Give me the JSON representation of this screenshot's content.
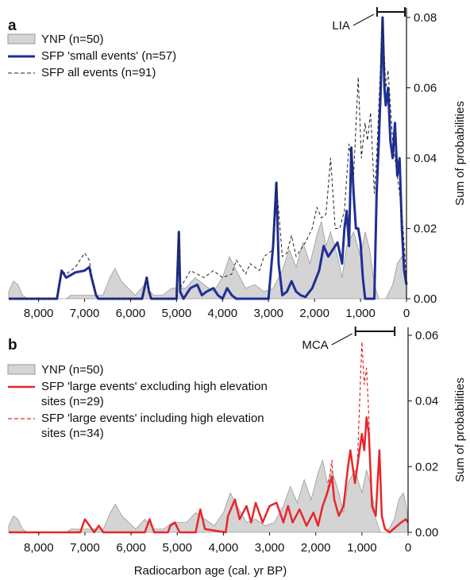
{
  "chart_data": [
    {
      "type": "line",
      "panel": "a",
      "ylabel": "Sum of probabilities",
      "xlim": [
        8650,
        0
      ],
      "ylim": [
        0,
        0.08
      ],
      "xticks": [
        {
          "value": 8000,
          "label": "8,000"
        },
        {
          "value": 7000,
          "label": "7,000"
        },
        {
          "value": 6000,
          "label": "6,000"
        },
        {
          "value": 5000,
          "label": "5,000"
        },
        {
          "value": 4000,
          "label": "4,000"
        },
        {
          "value": 3000,
          "label": "3,000"
        },
        {
          "value": 2000,
          "label": "2,000"
        },
        {
          "value": 1000,
          "label": "1,000"
        },
        0
      ],
      "yticks": [
        {
          "value": 0,
          "label": "0.00"
        },
        {
          "value": 0.02,
          "label": "0.02"
        },
        {
          "value": 0.04,
          "label": "0.04"
        },
        {
          "value": 0.06,
          "label": "0.06"
        },
        {
          "value": 0.08,
          "label": "0.08"
        }
      ],
      "annotation": {
        "label": "LIA",
        "range": [
          640,
          35
        ]
      },
      "series": [
        {
          "name": "YNP (n=50)",
          "kind": "area",
          "color": "#d4d4d4",
          "x": [
            8650,
            8550,
            8450,
            8350,
            8250,
            7400,
            7300,
            6600,
            6450,
            6340,
            6200,
            5900,
            5700,
            5500,
            5300,
            5100,
            4800,
            4600,
            4400,
            4200,
            4000,
            3850,
            3700,
            3500,
            3300,
            3100,
            2900,
            2700,
            2550,
            2400,
            2250,
            2100,
            1950,
            1850,
            1750,
            1650,
            1500,
            1400,
            1300,
            1150,
            1000,
            900,
            800,
            700,
            600,
            450,
            300,
            200,
            100,
            40,
            0
          ],
          "values": [
            0.002,
            0.005,
            0.004,
            0.001,
            0,
            0,
            0.001,
            0.001,
            0.006,
            0.0086,
            0.005,
            0.001,
            0.004,
            0.001,
            0.001,
            0.003,
            0.003,
            0.006,
            0.004,
            0.002,
            0.006,
            0.012,
            0.008,
            0.003,
            0.004,
            0.002,
            0.003,
            0.008,
            0.014,
            0.009,
            0.016,
            0.01,
            0.018,
            0.022,
            0.015,
            0.019,
            0.012,
            0.006,
            0.015,
            0.019,
            0.012,
            0.019,
            0.014,
            0.004,
            0,
            0,
            0.004,
            0.01,
            0.012,
            0.008,
            0.003
          ]
        },
        {
          "name": "SFP 'small events' (n=57)",
          "kind": "line",
          "color": "#1f2f96",
          "width": 3,
          "x": [
            8650,
            7600,
            7500,
            7400,
            7200,
            7000,
            6900,
            6850,
            6750,
            6700,
            5750,
            5650,
            5600,
            5550,
            5000,
            4950,
            4920,
            4850,
            4700,
            4550,
            4450,
            4350,
            4200,
            4100,
            4000,
            3900,
            3800,
            3700,
            3000,
            2900,
            2830,
            2780,
            2700,
            2600,
            2500,
            2400,
            2300,
            2200,
            2050,
            1900,
            1800,
            1700,
            1600,
            1500,
            1400,
            1350,
            1300,
            1250,
            1200,
            1150,
            1100,
            1050,
            1000,
            950,
            900,
            700,
            650,
            600,
            560,
            520,
            480,
            450,
            400,
            350,
            300,
            250,
            200,
            150,
            100,
            50,
            0
          ],
          "values": [
            0,
            0,
            0.008,
            0.006,
            0.0075,
            0.008,
            0.009,
            0.006,
            0.001,
            0,
            0,
            0.006,
            0.002,
            0,
            0,
            0.019,
            0.002,
            0,
            0.003,
            0.004,
            0.001,
            0.002,
            0.003,
            0.001,
            0,
            0.003,
            0.001,
            0,
            0,
            0.015,
            0.033,
            0.01,
            0.001,
            0.002,
            0.005,
            0.002,
            0.001,
            0.0005,
            0.003,
            0.008,
            0.015,
            0.012,
            0.014,
            0.016,
            0.01,
            0.02,
            0.025,
            0.015,
            0.043,
            0.03,
            0.02,
            0.02,
            0.016,
            0.006,
            0,
            0,
            0.03,
            0.045,
            0.06,
            0.08,
            0.06,
            0.055,
            0.06,
            0.045,
            0.04,
            0.05,
            0.035,
            0.04,
            0.02,
            0.008,
            0.004
          ]
        },
        {
          "name": "SFP all events (n=91)",
          "kind": "line",
          "color": "#222222",
          "width": 1,
          "dash": true,
          "x": [
            8650,
            7600,
            7500,
            7400,
            7200,
            7000,
            6900,
            6850,
            6750,
            6700,
            5750,
            5650,
            5600,
            5550,
            5000,
            4950,
            4920,
            4700,
            4400,
            4200,
            4000,
            3800,
            3700,
            3500,
            3400,
            3200,
            3100,
            2900,
            2830,
            2700,
            2600,
            2500,
            2400,
            2200,
            2050,
            1950,
            1850,
            1750,
            1650,
            1550,
            1450,
            1350,
            1250,
            1150,
            1050,
            980,
            900,
            850,
            780,
            700,
            650,
            520,
            450,
            400,
            300,
            200,
            100,
            50,
            0
          ],
          "values": [
            0,
            0,
            0.008,
            0.007,
            0.009,
            0.013,
            0.011,
            0.007,
            0.001,
            0,
            0,
            0.006,
            0.002,
            0,
            0,
            0.019,
            0.003,
            0.008,
            0.006,
            0.008,
            0.006,
            0.007,
            0.011,
            0.007,
            0.01,
            0.008,
            0.012,
            0.014,
            0.033,
            0.012,
            0.013,
            0.018,
            0.012,
            0.016,
            0.02,
            0.026,
            0.023,
            0.024,
            0.04,
            0.02,
            0.02,
            0.025,
            0.044,
            0.035,
            0.063,
            0.04,
            0.05,
            0.045,
            0.053,
            0.03,
            0.04,
            0.08,
            0.06,
            0.065,
            0.045,
            0.035,
            0.025,
            0.015,
            0.005
          ]
        }
      ]
    },
    {
      "type": "line",
      "panel": "b",
      "ylabel": "Sum of probabilities",
      "xlabel": "Radiocarbon age (cal. yr BP)",
      "xlim": [
        8650,
        0
      ],
      "ylim": [
        0,
        0.06
      ],
      "xticks": [
        {
          "value": 8000,
          "label": "8,000"
        },
        {
          "value": 7000,
          "label": "7,000"
        },
        {
          "value": 6000,
          "label": "6,000"
        },
        {
          "value": 5000,
          "label": "5,000"
        },
        {
          "value": 4000,
          "label": "4,000"
        },
        {
          "value": 3000,
          "label": "3,000"
        },
        {
          "value": 2000,
          "label": "2,000"
        },
        {
          "value": 1000,
          "label": "1,000"
        },
        0
      ],
      "yticks": [
        {
          "value": 0,
          "label": "0.00"
        },
        {
          "value": 0.02,
          "label": "0.02"
        },
        {
          "value": 0.04,
          "label": "0.04"
        },
        {
          "value": 0.06,
          "label": "0.06"
        }
      ],
      "annotation": {
        "label": "MCA",
        "range": [
          1140,
          290
        ]
      },
      "series": [
        {
          "name": "YNP (n=50)",
          "kind": "area",
          "color": "#d4d4d4",
          "x": [
            8650,
            8550,
            8450,
            8350,
            8250,
            7400,
            7300,
            6600,
            6450,
            6340,
            6200,
            5900,
            5700,
            5500,
            5300,
            5100,
            4800,
            4600,
            4400,
            4200,
            4000,
            3850,
            3700,
            3500,
            3300,
            3100,
            2900,
            2700,
            2550,
            2400,
            2250,
            2100,
            1950,
            1850,
            1750,
            1650,
            1500,
            1400,
            1300,
            1150,
            1000,
            900,
            800,
            700,
            600,
            450,
            300,
            200,
            100,
            40,
            0
          ],
          "values": [
            0.002,
            0.005,
            0.004,
            0.001,
            0,
            0,
            0.001,
            0.001,
            0.006,
            0.0086,
            0.005,
            0.001,
            0.004,
            0.001,
            0.001,
            0.003,
            0.003,
            0.006,
            0.004,
            0.002,
            0.006,
            0.012,
            0.008,
            0.003,
            0.004,
            0.002,
            0.003,
            0.008,
            0.014,
            0.009,
            0.016,
            0.01,
            0.018,
            0.022,
            0.015,
            0.019,
            0.012,
            0.006,
            0.015,
            0.019,
            0.012,
            0.019,
            0.014,
            0.004,
            0,
            0,
            0.004,
            0.01,
            0.012,
            0.008,
            0.003
          ]
        },
        {
          "name": "SFP 'large events' excluding high elevation sites (n=29)",
          "kind": "line",
          "color": "#e8262b",
          "width": 2.5,
          "x": [
            8650,
            7100,
            7000,
            6900,
            6800,
            6700,
            6600,
            5700,
            5600,
            5500,
            5200,
            5150,
            5050,
            4950,
            4600,
            4500,
            4400,
            3950,
            3900,
            3750,
            3650,
            3500,
            3400,
            3300,
            3150,
            3000,
            2850,
            2700,
            2600,
            2500,
            2350,
            2200,
            2050,
            1950,
            1850,
            1750,
            1650,
            1600,
            1500,
            1400,
            1300,
            1250,
            1150,
            1100,
            1000,
            950,
            900,
            850,
            780,
            700,
            620,
            570,
            500,
            400,
            150,
            50,
            0
          ],
          "values": [
            0,
            0,
            0.004,
            0.002,
            0,
            0.002,
            0,
            0,
            0.004,
            0,
            0,
            0.002,
            0.003,
            0,
            0,
            0.007,
            0.001,
            0,
            0.005,
            0.01,
            0.004,
            0.008,
            0.003,
            0.009,
            0.003,
            0.008,
            0.009,
            0.003,
            0.008,
            0.003,
            0.007,
            0.002,
            0.006,
            0.002,
            0.008,
            0.012,
            0.017,
            0.01,
            0.005,
            0.008,
            0.02,
            0.025,
            0.015,
            0.02,
            0.03,
            0.025,
            0.035,
            0.03,
            0.008,
            0.005,
            0.025,
            0.005,
            0.001,
            0,
            0.003,
            0.004,
            0.003
          ]
        },
        {
          "name": "SFP 'large events' including high elevation sites (n=34)",
          "kind": "line",
          "color": "#e8262b",
          "width": 1.2,
          "dash": true,
          "x": [
            1950,
            1850,
            1750,
            1650,
            1600,
            1500,
            1400,
            1300,
            1250,
            1150,
            1100,
            1000,
            950,
            900,
            850,
            780
          ],
          "values": [
            0.002,
            0.008,
            0.012,
            0.022,
            0.01,
            0.005,
            0.008,
            0.02,
            0.025,
            0.015,
            0.02,
            0.058,
            0.045,
            0.05,
            0.035,
            0.008
          ]
        }
      ]
    }
  ]
}
